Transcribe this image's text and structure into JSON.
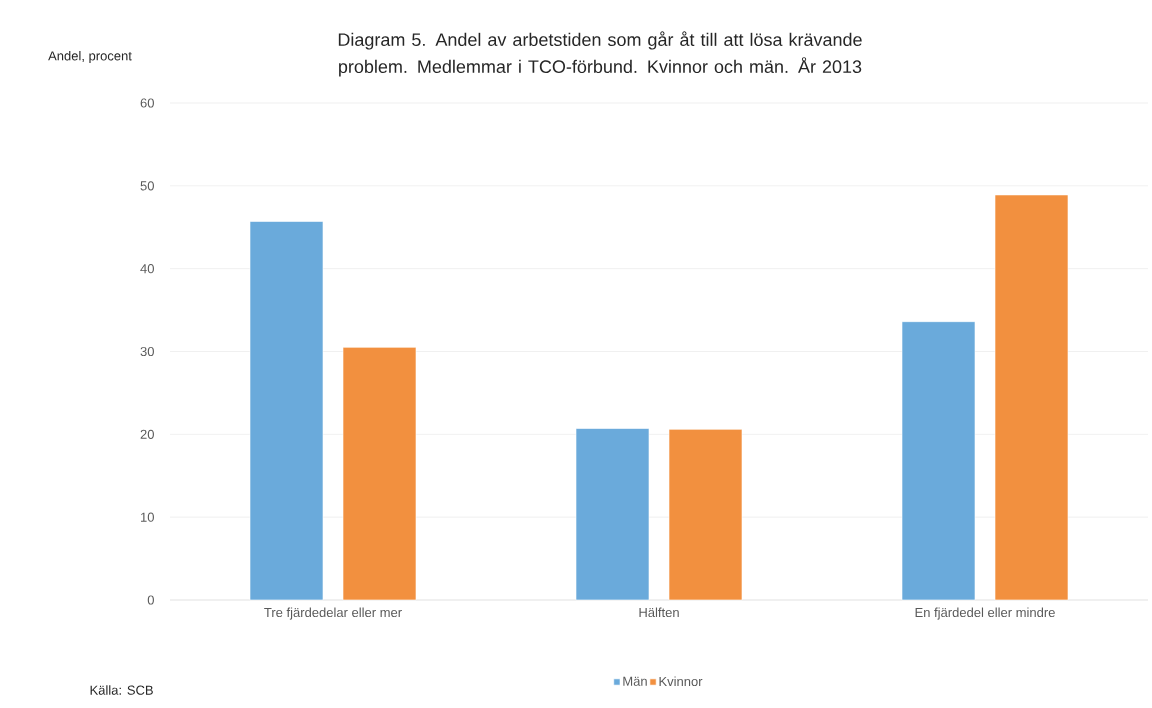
{
  "chart_data": {
    "type": "bar",
    "title": "Diagram 5. Andel av arbetstiden som går åt till att lösa krävande problem. Medlemmar i TCO-förbund. Kvinnor och män. År 2013",
    "ylabel": "Andel, procent",
    "annotations": [
      "Källa: SCB"
    ],
    "categories": [
      "Tre fjärdedelar eller mer",
      "Hälften",
      "En fjärdedel eller mindre"
    ],
    "series": [
      {
        "name": "Män",
        "color": "#6aaadb",
        "values": [
          45.7,
          20.7,
          33.6
        ]
      },
      {
        "name": "Kvinnor",
        "color": "#f2903f",
        "values": [
          30.5,
          20.6,
          48.9
        ]
      }
    ],
    "ylim": [
      0,
      60
    ],
    "yticks": [
      0,
      10,
      20,
      30,
      40,
      50,
      60
    ],
    "grid": "y",
    "legend": "bottom"
  }
}
